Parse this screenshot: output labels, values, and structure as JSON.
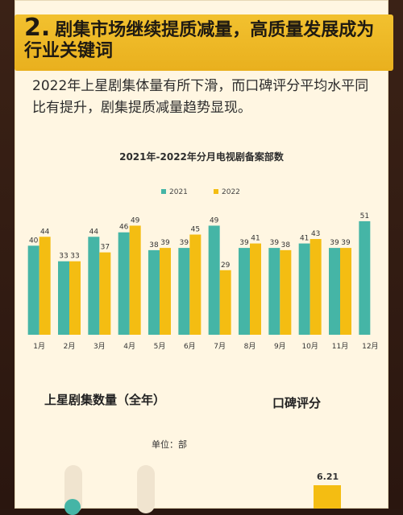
{
  "header": {
    "number": "2.",
    "title": "剧集市场继续提质减量，高质量发展成为行业关键词"
  },
  "subtitle": "2022年上星剧集体量有所下滑，而口碑评分平均水平同比有提升，剧集提质减量趋势显现。",
  "chart_data": {
    "type": "bar",
    "title": "2021年-2022年分月电视剧备案部数",
    "categories": [
      "1月",
      "2月",
      "3月",
      "4月",
      "5月",
      "6月",
      "7月",
      "8月",
      "9月",
      "10月",
      "11月",
      "12月"
    ],
    "series": [
      {
        "name": "2021",
        "color": "#45b5a6",
        "values": [
          40,
          33,
          44,
          46,
          38,
          39,
          49,
          39,
          39,
          41,
          39,
          51
        ]
      },
      {
        "name": "2022",
        "color": "#f4bd12",
        "values": [
          44,
          33,
          37,
          49,
          39,
          45,
          29,
          41,
          38,
          43,
          39,
          null
        ]
      }
    ],
    "legend": "top-center"
  },
  "sections": {
    "left_title": "上星剧集数量（全年）",
    "unit": "单位：部",
    "right_title": "口碑评分",
    "score": "6.21"
  }
}
